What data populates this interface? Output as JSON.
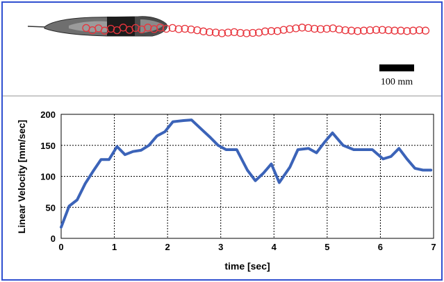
{
  "scale_bar": {
    "label": "100 mm"
  },
  "chart_data": {
    "type": "line",
    "title": "",
    "xlabel": "time [sec]",
    "ylabel": "Linear Velocity [mm/sec]",
    "xlim": [
      0,
      7
    ],
    "ylim": [
      0,
      200
    ],
    "xticks": [
      0,
      1,
      2,
      3,
      4,
      5,
      6,
      7
    ],
    "yticks": [
      0,
      50,
      100,
      150,
      200
    ],
    "grid": true,
    "line_color": "#3b63b8",
    "series": [
      {
        "name": "",
        "x": [
          0,
          0.15,
          0.3,
          0.45,
          0.6,
          0.75,
          0.9,
          1.05,
          1.2,
          1.35,
          1.5,
          1.65,
          1.8,
          1.95,
          2.1,
          2.3,
          2.45,
          2.65,
          2.8,
          2.95,
          3.1,
          3.3,
          3.5,
          3.65,
          3.8,
          3.95,
          4.1,
          4.3,
          4.45,
          4.65,
          4.8,
          4.95,
          5.1,
          5.3,
          5.5,
          5.65,
          5.85,
          6.05,
          6.2,
          6.35,
          6.5,
          6.65,
          6.8,
          6.95
        ],
        "y": [
          18,
          52,
          62,
          88,
          108,
          127,
          127,
          148,
          135,
          140,
          142,
          150,
          165,
          172,
          188,
          190,
          191,
          175,
          163,
          150,
          143,
          143,
          110,
          93,
          105,
          120,
          90,
          115,
          143,
          145,
          138,
          155,
          170,
          150,
          143,
          143,
          143,
          128,
          132,
          145,
          128,
          113,
          110,
          110
        ]
      }
    ]
  },
  "trajectory": {
    "marker_color": "#e8343c",
    "x_mm": [
      0,
      8,
      16,
      24,
      32,
      40,
      48,
      56,
      64,
      72,
      80,
      88,
      96,
      104,
      112,
      120,
      128,
      136,
      144,
      152,
      160,
      168,
      176,
      184,
      192,
      200,
      208,
      216,
      224,
      232,
      240,
      248,
      256,
      264,
      272,
      280,
      288,
      296,
      304,
      312,
      320,
      328,
      336,
      344,
      352,
      360,
      368,
      376,
      384,
      392,
      400,
      408,
      416,
      424,
      432,
      440
    ],
    "y_mm": [
      3,
      -3,
      2,
      -4,
      1,
      -3,
      4,
      -2,
      3,
      -1,
      4,
      0,
      4,
      1,
      3,
      0,
      1,
      -1,
      -3,
      -6,
      -8,
      -9,
      -11,
      -9,
      -8,
      -10,
      -11,
      -10,
      -9,
      -6,
      -5,
      -5,
      -2,
      0,
      2,
      4,
      3,
      1,
      0,
      1,
      2,
      -1,
      -3,
      -4,
      -5,
      -4,
      -3,
      -2,
      -2,
      -3,
      -4,
      -4,
      -5,
      -4,
      -3,
      -4
    ]
  }
}
